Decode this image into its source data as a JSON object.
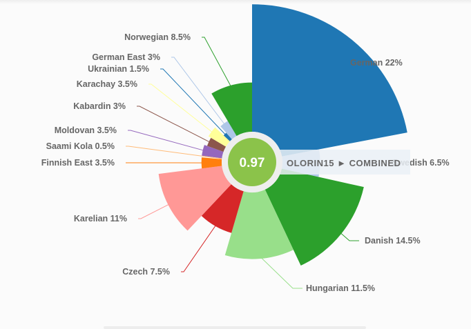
{
  "chart_data": {
    "type": "polar-area",
    "center_value": "0.97",
    "center_tag": "OLORIN15 ► COMBINED",
    "slices": [
      {
        "name": "German",
        "value": 22,
        "label": "German 22%",
        "color": "#1f77b4"
      },
      {
        "name": "Swedish",
        "value": 6.5,
        "label": "Swedish 6.5%",
        "color": "#aec7e8"
      },
      {
        "name": "Danish",
        "value": 14.5,
        "label": "Danish 14.5%",
        "color": "#2ca02c"
      },
      {
        "name": "Hungarian",
        "value": 11.5,
        "label": "Hungarian 11.5%",
        "color": "#98df8a"
      },
      {
        "name": "Czech",
        "value": 7.5,
        "label": "Czech 7.5%",
        "color": "#d62728"
      },
      {
        "name": "Karelian",
        "value": 11,
        "label": "Karelian 11%",
        "color": "#ff9896"
      },
      {
        "name": "Finnish East",
        "value": 3.5,
        "label": "Finnish East 3.5%",
        "color": "#ff7f0e"
      },
      {
        "name": "Saami Kola",
        "value": 0.5,
        "label": "Saami Kola 0.5%",
        "color": "#ffbb78"
      },
      {
        "name": "Moldovan",
        "value": 3.5,
        "label": "Moldovan 3.5%",
        "color": "#9467bd"
      },
      {
        "name": "Kabardin",
        "value": 3,
        "label": "Kabardin 3%",
        "color": "#8c564b"
      },
      {
        "name": "Karachay",
        "value": 3.5,
        "label": "Karachay 3.5%",
        "color": "#ffff99"
      },
      {
        "name": "Ukrainian",
        "value": 1.5,
        "label": "Ukrainian 1.5%",
        "color": "#1f77b4"
      },
      {
        "name": "German East",
        "value": 3,
        "label": "German East 3%",
        "color": "#aec7e8"
      },
      {
        "name": "Norwegian",
        "value": 8.5,
        "label": "Norwegian 8.5%",
        "color": "#2ca02c"
      }
    ]
  }
}
